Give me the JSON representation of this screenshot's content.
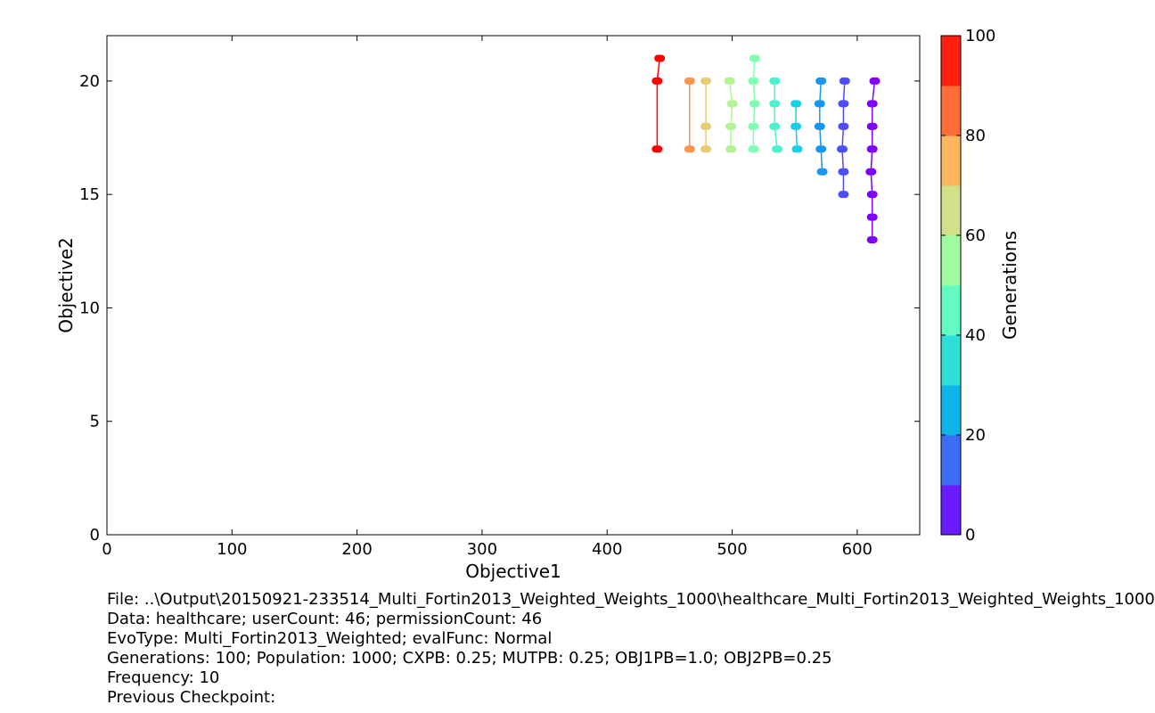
{
  "chart_data": {
    "type": "scatter",
    "xlabel": "Objective1",
    "ylabel": "Objective2",
    "xlim": [
      0,
      650
    ],
    "ylim": [
      0,
      22
    ],
    "xticks": [
      0,
      100,
      200,
      300,
      400,
      500,
      600
    ],
    "yticks": [
      0,
      5,
      10,
      15,
      20
    ],
    "colorbar": {
      "label": "Generations",
      "range": [
        0,
        100
      ],
      "ticks": [
        0,
        20,
        40,
        60,
        80,
        100
      ],
      "bands": [
        "#6a1cff",
        "#3b6df6",
        "#0db4ea",
        "#2ddfd6",
        "#62fcc3",
        "#9efba0",
        "#d3e08a",
        "#ffb460",
        "#ff6c37",
        "#ff1e10"
      ]
    },
    "series": [
      {
        "generation": 0,
        "color": "#8000ff",
        "points": [
          [
            614,
            20
          ],
          [
            612,
            19
          ],
          [
            612,
            18
          ],
          [
            612,
            17
          ],
          [
            611,
            16
          ],
          [
            612,
            15
          ],
          [
            612,
            14
          ],
          [
            612,
            13
          ]
        ]
      },
      {
        "generation": 10,
        "color": "#4e4dfc",
        "points": [
          [
            590,
            20
          ],
          [
            589,
            19
          ],
          [
            589,
            18
          ],
          [
            588,
            17
          ],
          [
            589,
            16
          ],
          [
            589,
            15
          ]
        ]
      },
      {
        "generation": 20,
        "color": "#1996f3",
        "points": [
          [
            571,
            20
          ],
          [
            570,
            19
          ],
          [
            570,
            18
          ],
          [
            571,
            17
          ],
          [
            572,
            16
          ]
        ]
      },
      {
        "generation": 30,
        "color": "#1acfe3",
        "points": [
          [
            551,
            19
          ],
          [
            551,
            18
          ],
          [
            552,
            17
          ]
        ]
      },
      {
        "generation": 40,
        "color": "#4cf2ce",
        "points": [
          [
            534,
            20
          ],
          [
            534,
            19
          ],
          [
            534,
            18
          ],
          [
            536,
            17
          ]
        ]
      },
      {
        "generation": 50,
        "color": "#80ffb4",
        "points": [
          [
            518,
            21
          ],
          [
            517,
            20
          ],
          [
            518,
            19
          ],
          [
            517,
            18
          ],
          [
            517,
            17
          ]
        ]
      },
      {
        "generation": 60,
        "color": "#b2f396",
        "points": [
          [
            498,
            20
          ],
          [
            500,
            19
          ],
          [
            499,
            18
          ],
          [
            499,
            17
          ]
        ]
      },
      {
        "generation": 70,
        "color": "#e6cd73",
        "points": [
          [
            479,
            20
          ],
          [
            479,
            18
          ],
          [
            479,
            17
          ]
        ]
      },
      {
        "generation": 80,
        "color": "#ff964f",
        "points": [
          [
            466,
            20
          ],
          [
            466,
            17
          ]
        ]
      },
      {
        "generation": 100,
        "color": "#ff0000",
        "points": [
          [
            442,
            21
          ],
          [
            440,
            20
          ],
          [
            440,
            17
          ]
        ]
      }
    ]
  },
  "info": {
    "file": "File: ..\\Output\\20150921-233514_Multi_Fortin2013_Weighted_Weights_1000\\healthcare_Multi_Fortin2013_Weighted_Weights_1000",
    "data": "Data: healthcare; userCount: 46; permissionCount: 46",
    "evotype": "EvoType: Multi_Fortin2013_Weighted; evalFunc: Normal",
    "generations": "Generations: 100; Population: 1000; CXPB: 0.25; MUTPB: 0.25; OBJ1PB=1.0; OBJ2PB=0.25",
    "frequency": "Frequency: 10",
    "checkpoint": "Previous Checkpoint:"
  }
}
